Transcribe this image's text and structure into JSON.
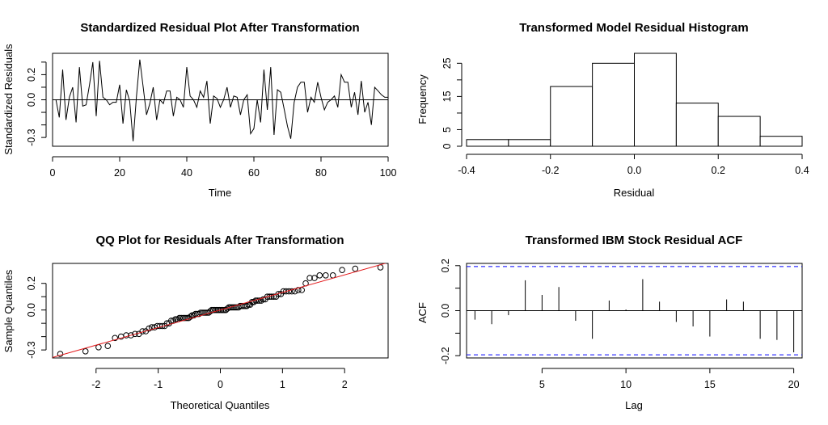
{
  "chart_data": [
    {
      "id": "residual-plot",
      "type": "line",
      "title": "Standardized Residual Plot After Transformation",
      "xlabel": "Time",
      "ylabel": "Standardized Residuals",
      "xlim": [
        0,
        100
      ],
      "ylim": [
        -0.37,
        0.37
      ],
      "xticks": [
        0,
        20,
        40,
        60,
        80,
        100
      ],
      "xtick_labels": [
        "0",
        "20",
        "40",
        "60",
        "80",
        "100"
      ],
      "yticks": [
        -0.3,
        -0.2,
        -0.1,
        0.0,
        0.1,
        0.2,
        0.3
      ],
      "ytick_labels": [
        "-0.3",
        "",
        "",
        "0.0",
        "",
        "0.2",
        ""
      ],
      "hline": 0,
      "series": [
        {
          "x": [
            1,
            2,
            3,
            4,
            5,
            6,
            7,
            8,
            9,
            10,
            11,
            12,
            13,
            14,
            15,
            16,
            17,
            18,
            19,
            20,
            21,
            22,
            23,
            24,
            25,
            26,
            27,
            28,
            29,
            30,
            31,
            32,
            33,
            34,
            35,
            36,
            37,
            38,
            39,
            40,
            41,
            42,
            43,
            44,
            45,
            46,
            47,
            48,
            49,
            50,
            51,
            52,
            53,
            54,
            55,
            56,
            57,
            58,
            59,
            60,
            61,
            62,
            63,
            64,
            65,
            66,
            67,
            68,
            69,
            70,
            71,
            72,
            73,
            74,
            75,
            76,
            77,
            78,
            79,
            80,
            81,
            82,
            83,
            84,
            85,
            86,
            87,
            88,
            89,
            90,
            91,
            92,
            93,
            94,
            95,
            96,
            97,
            98,
            99,
            100
          ],
          "values": [
            0.0,
            -0.14,
            0.24,
            -0.16,
            0.02,
            0.1,
            -0.18,
            0.26,
            -0.05,
            -0.04,
            0.12,
            0.3,
            -0.13,
            0.31,
            0.02,
            0.0,
            -0.04,
            -0.02,
            -0.02,
            0.12,
            -0.19,
            0.08,
            -0.01,
            -0.33,
            0.03,
            0.32,
            0.1,
            -0.12,
            -0.03,
            0.1,
            -0.16,
            0.0,
            -0.03,
            0.07,
            0.07,
            -0.13,
            0.02,
            0.0,
            -0.06,
            0.26,
            0.03,
            0.0,
            -0.06,
            0.07,
            0.02,
            0.15,
            -0.19,
            0.03,
            0.01,
            -0.06,
            0.0,
            0.1,
            -0.06,
            0.03,
            0.02,
            -0.12,
            0.0,
            0.04,
            -0.27,
            -0.23,
            0.0,
            -0.18,
            0.24,
            -0.08,
            0.26,
            -0.28,
            0.08,
            0.06,
            -0.07,
            -0.21,
            -0.31,
            -0.02,
            0.1,
            0.14,
            0.14,
            -0.1,
            0.02,
            -0.02,
            0.14,
            0.02,
            -0.08,
            -0.02,
            0.0,
            0.03,
            -0.06,
            0.2,
            0.14,
            0.14,
            -0.06,
            0.06,
            -0.12,
            0.15,
            -0.1,
            -0.02,
            -0.2,
            0.1,
            0.07,
            0.04,
            0.02,
            0.02
          ]
        }
      ]
    },
    {
      "id": "histogram",
      "type": "bar",
      "title": "Transformed Model Residual Histogram",
      "xlabel": "Residual",
      "ylabel": "Frequency",
      "xlim": [
        -0.4,
        0.4
      ],
      "ylim": [
        0,
        28
      ],
      "xticks": [
        -0.4,
        -0.2,
        0.0,
        0.2,
        0.4
      ],
      "xtick_labels": [
        "-0.4",
        "-0.2",
        "0.0",
        "0.2",
        "0.4"
      ],
      "yticks": [
        0,
        5,
        10,
        15,
        20,
        25
      ],
      "ytick_labels": [
        "0",
        "5",
        "",
        "15",
        "",
        "25"
      ],
      "bin_edges": [
        -0.4,
        -0.3,
        -0.2,
        -0.1,
        0.0,
        0.1,
        0.2,
        0.3,
        0.4
      ],
      "values": [
        2,
        2,
        18,
        25,
        28,
        13,
        9,
        3
      ]
    },
    {
      "id": "qq-plot",
      "type": "scatter",
      "title": "QQ Plot for Residuals After Transformation",
      "xlabel": "Theoretical Quantiles",
      "ylabel": "Sample Quantiles",
      "xlim": [
        -2.7,
        2.7
      ],
      "ylim": [
        -0.36,
        0.35
      ],
      "xticks": [
        -2,
        -1,
        0,
        1,
        2
      ],
      "xtick_labels": [
        "-2",
        "-1",
        "0",
        "1",
        "2"
      ],
      "yticks": [
        -0.3,
        -0.2,
        -0.1,
        0.0,
        0.1,
        0.2
      ],
      "ytick_labels": [
        "-0.3",
        "",
        "",
        "0.0",
        "",
        "0.2"
      ],
      "qq_line": {
        "intercept": 0.0,
        "slope": 0.132
      },
      "points": {
        "n": 100,
        "sample": [
          -0.33,
          -0.31,
          -0.28,
          -0.27,
          -0.21,
          -0.2,
          -0.19,
          -0.19,
          -0.18,
          -0.18,
          -0.16,
          -0.16,
          -0.14,
          -0.13,
          -0.13,
          -0.12,
          -0.12,
          -0.12,
          -0.12,
          -0.1,
          -0.1,
          -0.08,
          -0.08,
          -0.07,
          -0.07,
          -0.06,
          -0.06,
          -0.06,
          -0.06,
          -0.06,
          -0.06,
          -0.05,
          -0.04,
          -0.04,
          -0.03,
          -0.03,
          -0.03,
          -0.02,
          -0.02,
          -0.02,
          -0.02,
          -0.02,
          -0.02,
          -0.01,
          0.0,
          0.0,
          0.0,
          0.0,
          0.0,
          0.0,
          0.0,
          0.0,
          0.0,
          0.0,
          0.01,
          0.02,
          0.02,
          0.02,
          0.02,
          0.02,
          0.02,
          0.02,
          0.03,
          0.03,
          0.03,
          0.03,
          0.03,
          0.04,
          0.04,
          0.06,
          0.06,
          0.07,
          0.07,
          0.07,
          0.07,
          0.08,
          0.08,
          0.1,
          0.1,
          0.1,
          0.1,
          0.1,
          0.12,
          0.12,
          0.14,
          0.14,
          0.14,
          0.14,
          0.14,
          0.15,
          0.15,
          0.2,
          0.24,
          0.24,
          0.26,
          0.26,
          0.26,
          0.3,
          0.31,
          0.32
        ]
      }
    },
    {
      "id": "acf-plot",
      "type": "bar",
      "title": "Transformed IBM Stock Residual ACF",
      "xlabel": "Lag",
      "ylabel": "ACF",
      "xlim": [
        0.5,
        20.5
      ],
      "ylim": [
        -0.21,
        0.21
      ],
      "xticks": [
        5,
        10,
        15,
        20
      ],
      "xtick_labels": [
        "5",
        "10",
        "15",
        "20"
      ],
      "yticks": [
        -0.2,
        -0.1,
        0.0,
        0.1,
        0.2
      ],
      "ytick_labels": [
        "-0.2",
        "",
        "0.0",
        "",
        "0.2"
      ],
      "conf_bound": 0.196,
      "colors": {
        "conf_line": "#0000ff"
      },
      "lags": [
        1,
        2,
        3,
        4,
        5,
        6,
        7,
        8,
        9,
        10,
        11,
        12,
        13,
        14,
        15,
        16,
        17,
        18,
        19,
        20
      ],
      "values": [
        -0.04,
        -0.06,
        -0.02,
        0.135,
        0.07,
        0.105,
        -0.045,
        -0.125,
        0.045,
        0.005,
        0.14,
        0.04,
        -0.05,
        -0.07,
        -0.115,
        0.05,
        0.04,
        -0.125,
        -0.13,
        -0.185
      ]
    }
  ]
}
